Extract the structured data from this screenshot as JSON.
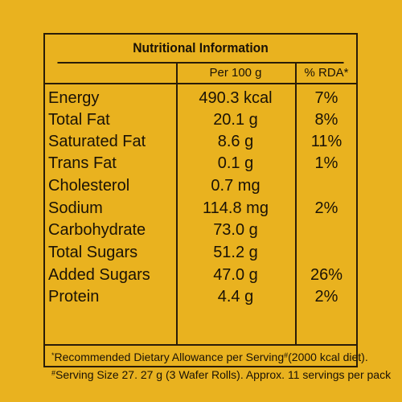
{
  "label": {
    "title": "Nutritional Information",
    "col_per100": "Per 100 g",
    "col_rda": "% RDA*"
  },
  "rows": [
    {
      "name": "Energy",
      "value": "490.3 kcal",
      "rda": "7%"
    },
    {
      "name": "Total Fat",
      "value": "20.1 g",
      "rda": "8%"
    },
    {
      "name": "Saturated Fat",
      "value": "8.6 g",
      "rda": "11%"
    },
    {
      "name": "Trans Fat",
      "value": "0.1 g",
      "rda": "1%"
    },
    {
      "name": "Cholesterol",
      "value": "0.7 mg",
      "rda": ""
    },
    {
      "name": "Sodium",
      "value": "114.8 mg",
      "rda": "2%"
    },
    {
      "name": "Carbohydrate",
      "value": "73.0 g",
      "rda": ""
    },
    {
      "name": "Total Sugars",
      "value": "51.2 g",
      "rda": ""
    },
    {
      "name": "Added Sugars",
      "value": "47.0 g",
      "rda": "26%"
    },
    {
      "name": "Protein",
      "value": "4.4 g",
      "rda": "2%"
    }
  ],
  "footer": {
    "rda_mark": "*",
    "line1": "Recommended Dietary Allowance per Serving",
    "serving_mark": "#",
    "line1_tail": "(2000 kcal diet).",
    "line2": "Serving Size 27. 27 g (3 Wafer Rolls). Approx. 11 servings per pack"
  }
}
